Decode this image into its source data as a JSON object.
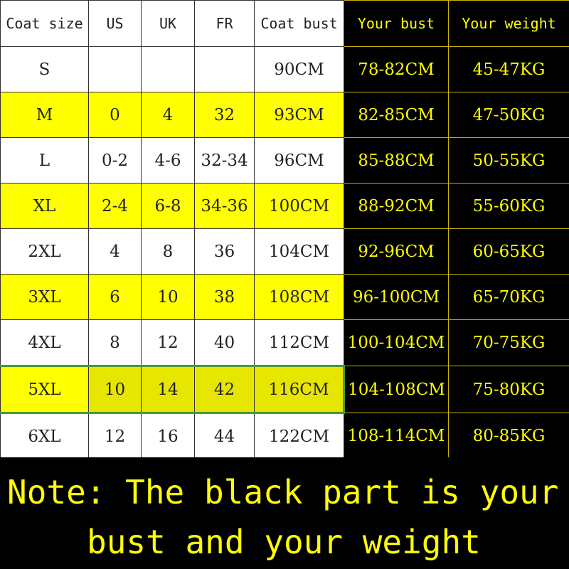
{
  "headers": [
    "Coat size",
    "US",
    "UK",
    "FR",
    "Coat bust",
    "Your bust",
    "Your weight"
  ],
  "rows": [
    {
      "size": "S",
      "us": "",
      "uk": "",
      "fr": "",
      "coat_bust": "90CM",
      "your_bust": "78-82CM",
      "your_weight": "45-47KG",
      "highlight": false
    },
    {
      "size": "M",
      "us": "0",
      "uk": "4",
      "fr": "32",
      "coat_bust": "93CM",
      "your_bust": "82-85CM",
      "your_weight": "47-50KG",
      "highlight": true
    },
    {
      "size": "L",
      "us": "0-2",
      "uk": "4-6",
      "fr": "32-34",
      "coat_bust": "96CM",
      "your_bust": "85-88CM",
      "your_weight": "50-55KG",
      "highlight": false
    },
    {
      "size": "XL",
      "us": "2-4",
      "uk": "6-8",
      "fr": "34-36",
      "coat_bust": "100CM",
      "your_bust": "88-92CM",
      "your_weight": "55-60KG",
      "highlight": true
    },
    {
      "size": "2XL",
      "us": "4",
      "uk": "8",
      "fr": "36",
      "coat_bust": "104CM",
      "your_bust": "92-96CM",
      "your_weight": "60-65KG",
      "highlight": false
    },
    {
      "size": "3XL",
      "us": "6",
      "uk": "10",
      "fr": "38",
      "coat_bust": "108CM",
      "your_bust": "96-100CM",
      "your_weight": "65-70KG",
      "highlight": true
    },
    {
      "size": "4XL",
      "us": "8",
      "uk": "12",
      "fr": "40",
      "coat_bust": "112CM",
      "your_bust": "100-104CM",
      "your_weight": "70-75KG",
      "highlight": false
    },
    {
      "size": "5XL",
      "us": "10",
      "uk": "14",
      "fr": "42",
      "coat_bust": "116CM",
      "your_bust": "104-108CM",
      "your_weight": "75-80KG",
      "highlight": true,
      "selected": true
    },
    {
      "size": "6XL",
      "us": "12",
      "uk": "16",
      "fr": "44",
      "coat_bust": "122CM",
      "your_bust": "108-114CM",
      "your_weight": "80-85KG",
      "highlight": false
    }
  ],
  "note": {
    "line1": "Note: The black part is your",
    "line2": "bust and your weight"
  },
  "colors": {
    "highlight": "#ffff00",
    "selected": "#e6e600",
    "selection_border": "#4a9a30",
    "note_text": "#ffff00",
    "black": "#000000"
  }
}
